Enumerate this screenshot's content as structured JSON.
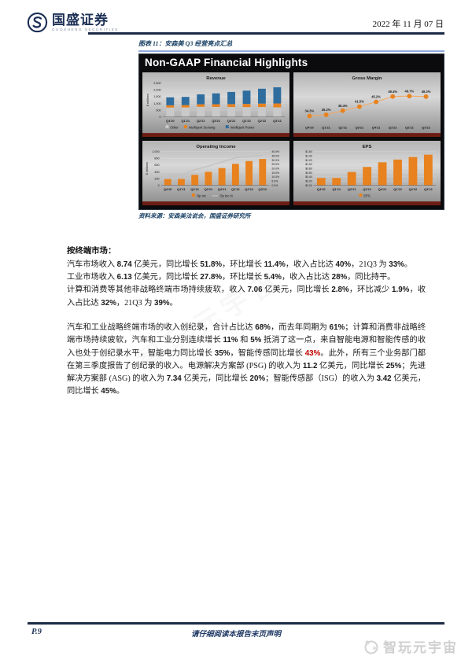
{
  "page": {
    "brand": {
      "name": "国盛证券",
      "sub": "GUOSHENG SECURITIES"
    },
    "date": "2022 年 11 月 07 日",
    "figure_caption": "图表 11：安森美 Q3 经营亮点汇总",
    "source_line": "资料来源：安森美法说会，国盛证券研究所",
    "footer": {
      "page_number": "P.9",
      "disclaimer": "请仔细阅读本报告末页声明"
    },
    "watermark": "智玩元宇宙"
  },
  "panel": {
    "title": "Non-GAAP Financial Highlights"
  },
  "chart_data": [
    {
      "type": "stacked-bar",
      "title": "Revenue",
      "ylabel": "$ millions",
      "categories": [
        "Q4'20",
        "Q1'21",
        "Q2'21",
        "Q3'21",
        "Q4'21",
        "Q1'22",
        "Q2'22",
        "Q3'22"
      ],
      "series": [
        {
          "name": "Other",
          "color": "#c9c9c9",
          "values": [
            690,
            700,
            745,
            735,
            730,
            725,
            730,
            705
          ]
        },
        {
          "name": "Intelligent Sensing",
          "color": "#e8821e",
          "values": [
            170,
            175,
            190,
            200,
            215,
            235,
            255,
            290
          ]
        },
        {
          "name": "Intelligent Power",
          "color": "#2f6d9e",
          "values": [
            590,
            605,
            735,
            805,
            900,
            985,
            1100,
            1195
          ]
        }
      ],
      "ylim": [
        0,
        2500
      ],
      "yticks": [
        "0",
        "500",
        "1,000",
        "1,500",
        "2,000",
        "2,500"
      ],
      "legend_position": "bottom"
    },
    {
      "type": "line",
      "title": "Gross Margin",
      "categories": [
        "Q4'20",
        "Q1'21",
        "Q2'21",
        "Q3'21",
        "Q4'21",
        "Q1'22",
        "Q2'22",
        "Q3'22"
      ],
      "values": [
        34.3,
        35.2,
        38.4,
        41.5,
        45.2,
        49.4,
        49.7,
        49.3
      ],
      "labels": [
        "34.3%",
        "35.2%",
        "38.4%",
        "41.5%",
        "45.2%",
        "49.4%",
        "49.7%",
        "49.3%"
      ],
      "color": "#e8821e",
      "ylim": [
        30,
        55
      ],
      "grid": false
    },
    {
      "type": "bar-line",
      "title": "Operating Income",
      "ylabel": "$ millions",
      "categories": [
        "Q4'20",
        "Q1'21",
        "Q2'21",
        "Q3'21",
        "Q4'21",
        "Q1'22",
        "Q2'22",
        "Q3'22"
      ],
      "bars": {
        "name": "Op Inc",
        "color": "#e8821e",
        "values": [
          187,
          190,
          309,
          399,
          510,
          636,
          718,
          780
        ]
      },
      "line": {
        "name": "Op Inc %",
        "color": "#c0c0c0",
        "values": [
          12.9,
          12.8,
          18.5,
          22.9,
          27.6,
          32.7,
          34.4,
          35.6
        ]
      },
      "ylim": [
        0,
        1000
      ],
      "yticks": [
        "0",
        "200",
        "400",
        "600",
        "800",
        "1,000"
      ],
      "y2lim": [
        0,
        40
      ],
      "y2ticks": [
        "0.0%",
        "5.0%",
        "10.0%",
        "15.0%",
        "20.0%",
        "25.0%",
        "30.0%",
        "35.0%",
        "40.0%"
      ],
      "legend_position": "bottom"
    },
    {
      "type": "bar",
      "title": "EPS",
      "legend": "EPS",
      "categories": [
        "Q4'20",
        "Q1'21",
        "Q2'21",
        "Q3'21",
        "Q4'21",
        "Q1'22",
        "Q2'22",
        "Q3'22"
      ],
      "values": [
        0.35,
        0.35,
        0.63,
        0.87,
        1.09,
        1.22,
        1.34,
        1.45
      ],
      "color": "#e8821e",
      "ylim": [
        0,
        1.6
      ],
      "yticks": [
        "$0.00",
        "$0.20",
        "$0.40",
        "$0.60",
        "$0.80",
        "$1.00",
        "$1.20",
        "$1.40",
        "$1.60"
      ],
      "legend_position": "bottom"
    }
  ],
  "body": {
    "heading": "按终端市场：",
    "paragraphs": [
      {
        "gap": false,
        "runs": [
          {
            "t": "汽车市场收入 "
          },
          {
            "t": "8.74",
            "b": true
          },
          {
            "t": " 亿美元，同比增长 "
          },
          {
            "t": "51.8%",
            "b": true
          },
          {
            "t": "，环比增长 "
          },
          {
            "t": "11.4%",
            "b": true
          },
          {
            "t": "，收入占比达 "
          },
          {
            "t": "40%",
            "b": true
          },
          {
            "t": "，21Q3 为 "
          },
          {
            "t": "33%",
            "b": true
          },
          {
            "t": "。"
          }
        ]
      },
      {
        "gap": false,
        "runs": [
          {
            "t": "工业市场收入 "
          },
          {
            "t": "6.13",
            "b": true
          },
          {
            "t": " 亿美元，同比增长 "
          },
          {
            "t": "27.8%",
            "b": true
          },
          {
            "t": "，环比增长 "
          },
          {
            "t": "5.4%",
            "b": true
          },
          {
            "t": "，收入占比达 "
          },
          {
            "t": "28%",
            "b": true
          },
          {
            "t": "，同比持平。"
          }
        ]
      },
      {
        "gap": false,
        "runs": [
          {
            "t": "计算和消费等其他非战略终端市场持续疲软，收入 "
          },
          {
            "t": "7.06",
            "b": true
          },
          {
            "t": " 亿美元，同比增长 "
          },
          {
            "t": "2.8%",
            "b": true
          },
          {
            "t": "，环比减少 "
          },
          {
            "t": "1.9%",
            "b": true
          },
          {
            "t": "，收入占比达 "
          },
          {
            "t": "32%",
            "b": true
          },
          {
            "t": "，21Q3 为 "
          },
          {
            "t": "39%",
            "b": true
          },
          {
            "t": "。"
          }
        ]
      },
      {
        "gap": true,
        "runs": [
          {
            "t": "汽车和工业战略终端市场的收入创纪录，合计占比达 "
          },
          {
            "t": "68%",
            "b": true
          },
          {
            "t": "，而去年同期为 "
          },
          {
            "t": "61%",
            "b": true
          },
          {
            "t": "；计算和消费非战略终端市场持续疲软，汽车和工业分别连续增长 "
          },
          {
            "t": "11%",
            "b": true
          },
          {
            "t": " 和 "
          },
          {
            "t": "5%",
            "b": true
          },
          {
            "t": " 抵消了这一点，来自智能电源和智能传感的收入也处于创纪录水平，智能电力同比增长 "
          },
          {
            "t": "35%",
            "b": true
          },
          {
            "t": "，智能传感同比增长 "
          },
          {
            "t": "43%",
            "b": true,
            "r": true
          },
          {
            "t": "。此外，所有三个业务部门都在第三季度报告了创纪录的收入。电源解决方案部 (PSG) 的收入为 "
          },
          {
            "t": "11.2",
            "b": true
          },
          {
            "t": " 亿美元，同比增长 "
          },
          {
            "t": "25%",
            "b": true
          },
          {
            "t": "；先进解决方案部 (ASG) 的收入为 "
          },
          {
            "t": "7.34",
            "b": true
          },
          {
            "t": " 亿美元，同比增长 "
          },
          {
            "t": "20%",
            "b": true
          },
          {
            "t": "；智能传感部（ISG）的收入为 "
          },
          {
            "t": "3.42",
            "b": true
          },
          {
            "t": " 亿美元，同比增长 "
          },
          {
            "t": "45%",
            "b": true
          },
          {
            "t": "。"
          }
        ]
      }
    ]
  }
}
